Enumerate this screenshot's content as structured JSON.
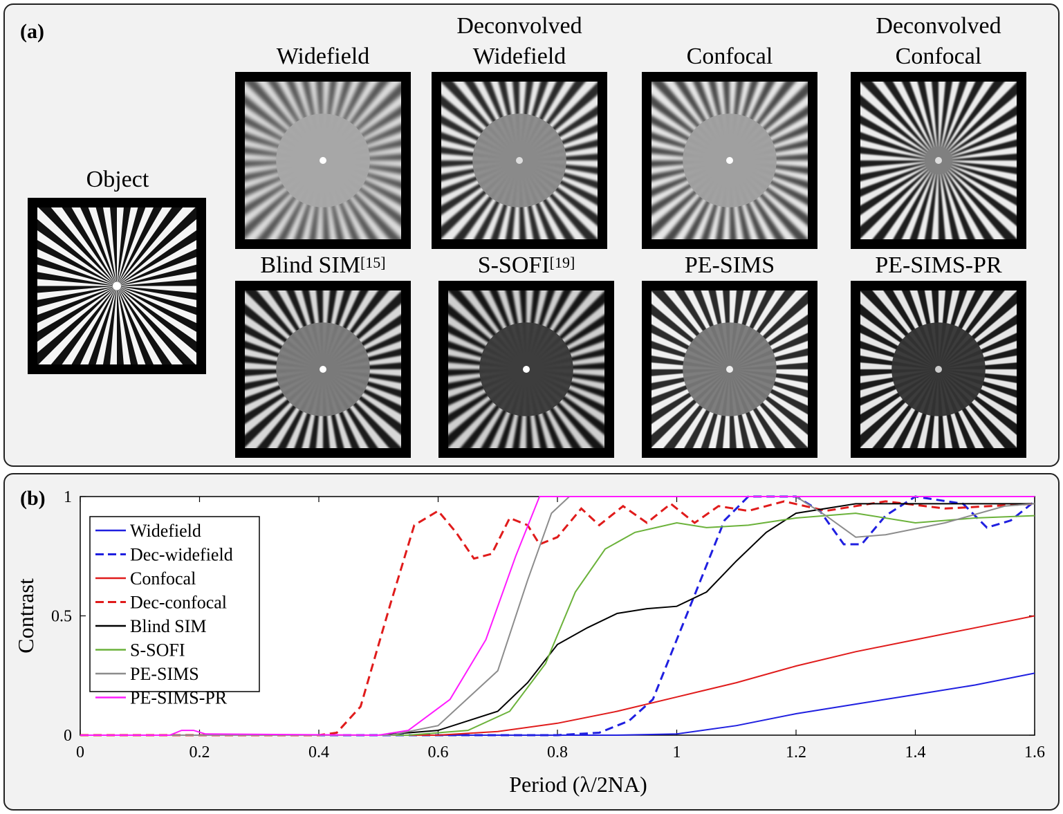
{
  "panel_a": {
    "label": "(a)",
    "object": {
      "title": "Object"
    },
    "images": [
      {
        "title": "Widefield",
        "sup": "",
        "style": "wide"
      },
      {
        "title": "Deconvolved\nWidefield",
        "sup": "",
        "style": "decwide"
      },
      {
        "title": "Confocal",
        "sup": "",
        "style": "conf"
      },
      {
        "title": "Deconvolved\nConfocal",
        "sup": "",
        "style": "decconf"
      },
      {
        "title": "Blind SIM",
        "sup": "[15]",
        "style": "blind"
      },
      {
        "title": "S-SOFI",
        "sup": "[19]",
        "style": "sofi"
      },
      {
        "title": "PE-SIMS",
        "sup": "",
        "style": "pesims"
      },
      {
        "title": "PE-SIMS-PR",
        "sup": "",
        "style": "pesimspr"
      }
    ]
  },
  "panel_b": {
    "label": "(b)"
  },
  "chart_data": {
    "type": "line",
    "xlabel": "Period  (λ/2NA)",
    "ylabel": "Contrast",
    "xlim": [
      0,
      1.6
    ],
    "ylim": [
      0,
      1
    ],
    "xticks": [
      "0",
      "0.2",
      "0.4",
      "0.6",
      "0.8",
      "1",
      "1.2",
      "1.4",
      "1.6"
    ],
    "yticks": [
      "0",
      "0.5",
      "1"
    ],
    "legend_position": "top-left",
    "series": [
      {
        "name": "Widefield",
        "color": "#1f1fe0",
        "dash": false,
        "points": [
          [
            0,
            0
          ],
          [
            0.9,
            0
          ],
          [
            1.0,
            0.005
          ],
          [
            1.1,
            0.04
          ],
          [
            1.2,
            0.09
          ],
          [
            1.3,
            0.13
          ],
          [
            1.4,
            0.17
          ],
          [
            1.5,
            0.21
          ],
          [
            1.6,
            0.26
          ]
        ]
      },
      {
        "name": "Dec-widefield",
        "color": "#1f1fe0",
        "dash": true,
        "points": [
          [
            0,
            0
          ],
          [
            0.8,
            0
          ],
          [
            0.87,
            0.01
          ],
          [
            0.92,
            0.06
          ],
          [
            0.96,
            0.15
          ],
          [
            1.0,
            0.4
          ],
          [
            1.04,
            0.65
          ],
          [
            1.08,
            0.9
          ],
          [
            1.12,
            1.0
          ],
          [
            1.2,
            1.0
          ],
          [
            1.24,
            0.94
          ],
          [
            1.28,
            0.8
          ],
          [
            1.31,
            0.8
          ],
          [
            1.35,
            0.92
          ],
          [
            1.4,
            1.0
          ],
          [
            1.48,
            0.97
          ],
          [
            1.52,
            0.87
          ],
          [
            1.56,
            0.9
          ],
          [
            1.6,
            0.98
          ]
        ]
      },
      {
        "name": "Confocal",
        "color": "#e01b1b",
        "dash": false,
        "points": [
          [
            0,
            0
          ],
          [
            0.6,
            0
          ],
          [
            0.7,
            0.015
          ],
          [
            0.8,
            0.05
          ],
          [
            0.9,
            0.1
          ],
          [
            1.0,
            0.16
          ],
          [
            1.1,
            0.22
          ],
          [
            1.2,
            0.29
          ],
          [
            1.3,
            0.35
          ],
          [
            1.4,
            0.4
          ],
          [
            1.5,
            0.45
          ],
          [
            1.6,
            0.5
          ]
        ]
      },
      {
        "name": "Dec-confocal",
        "color": "#e01b1b",
        "dash": true,
        "points": [
          [
            0,
            0
          ],
          [
            0.4,
            0
          ],
          [
            0.43,
            0.01
          ],
          [
            0.47,
            0.12
          ],
          [
            0.52,
            0.55
          ],
          [
            0.56,
            0.88
          ],
          [
            0.6,
            0.94
          ],
          [
            0.63,
            0.85
          ],
          [
            0.66,
            0.74
          ],
          [
            0.69,
            0.76
          ],
          [
            0.72,
            0.91
          ],
          [
            0.75,
            0.88
          ],
          [
            0.77,
            0.8
          ],
          [
            0.8,
            0.83
          ],
          [
            0.84,
            0.95
          ],
          [
            0.87,
            0.88
          ],
          [
            0.91,
            0.96
          ],
          [
            0.95,
            0.89
          ],
          [
            0.99,
            0.97
          ],
          [
            1.03,
            0.89
          ],
          [
            1.07,
            0.96
          ],
          [
            1.12,
            0.94
          ],
          [
            1.18,
            0.98
          ],
          [
            1.25,
            0.94
          ],
          [
            1.35,
            0.98
          ],
          [
            1.45,
            0.95
          ],
          [
            1.6,
            0.97
          ]
        ]
      },
      {
        "name": "Blind SIM",
        "color": "#000000",
        "dash": false,
        "points": [
          [
            0,
            0
          ],
          [
            0.5,
            0
          ],
          [
            0.6,
            0.02
          ],
          [
            0.7,
            0.1
          ],
          [
            0.75,
            0.22
          ],
          [
            0.8,
            0.38
          ],
          [
            0.85,
            0.45
          ],
          [
            0.9,
            0.51
          ],
          [
            0.95,
            0.53
          ],
          [
            1.0,
            0.54
          ],
          [
            1.05,
            0.6
          ],
          [
            1.1,
            0.73
          ],
          [
            1.15,
            0.85
          ],
          [
            1.2,
            0.93
          ],
          [
            1.3,
            0.97
          ],
          [
            1.45,
            0.97
          ],
          [
            1.6,
            0.97
          ]
        ]
      },
      {
        "name": "S-SOFI",
        "color": "#6bb23a",
        "dash": false,
        "points": [
          [
            0,
            0
          ],
          [
            0.55,
            0
          ],
          [
            0.65,
            0.02
          ],
          [
            0.72,
            0.1
          ],
          [
            0.78,
            0.3
          ],
          [
            0.83,
            0.6
          ],
          [
            0.88,
            0.78
          ],
          [
            0.93,
            0.85
          ],
          [
            1.0,
            0.89
          ],
          [
            1.05,
            0.87
          ],
          [
            1.12,
            0.88
          ],
          [
            1.2,
            0.91
          ],
          [
            1.3,
            0.93
          ],
          [
            1.4,
            0.89
          ],
          [
            1.5,
            0.91
          ],
          [
            1.6,
            0.92
          ]
        ]
      },
      {
        "name": "PE-SIMS",
        "color": "#8c8c8c",
        "dash": false,
        "points": [
          [
            0,
            0
          ],
          [
            0.52,
            0
          ],
          [
            0.6,
            0.04
          ],
          [
            0.7,
            0.27
          ],
          [
            0.75,
            0.65
          ],
          [
            0.79,
            0.93
          ],
          [
            0.82,
            1.0
          ],
          [
            1.2,
            1.0
          ],
          [
            1.25,
            0.92
          ],
          [
            1.3,
            0.83
          ],
          [
            1.35,
            0.84
          ],
          [
            1.45,
            0.89
          ],
          [
            1.55,
            0.96
          ],
          [
            1.6,
            0.97
          ]
        ]
      },
      {
        "name": "PE-SIMS-PR",
        "color": "#ff1aff",
        "dash": false,
        "points": [
          [
            0,
            0
          ],
          [
            0.15,
            0
          ],
          [
            0.17,
            0.02
          ],
          [
            0.19,
            0.02
          ],
          [
            0.21,
            0.005
          ],
          [
            0.5,
            0
          ],
          [
            0.55,
            0.02
          ],
          [
            0.62,
            0.15
          ],
          [
            0.68,
            0.4
          ],
          [
            0.73,
            0.75
          ],
          [
            0.77,
            1.0
          ],
          [
            1.6,
            1.0
          ]
        ]
      }
    ]
  }
}
